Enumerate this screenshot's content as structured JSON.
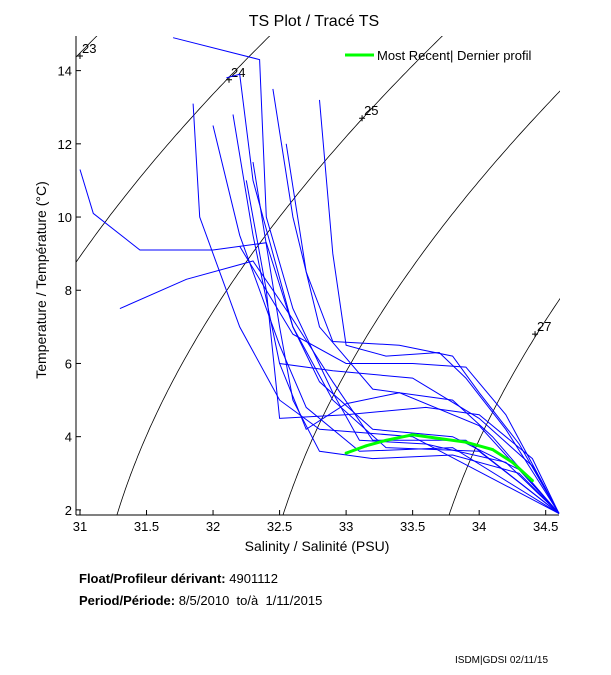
{
  "chart_data": {
    "type": "line",
    "title": "TS Plot / Tracé TS",
    "xlabel": "Salinity / Salinité (PSU)",
    "ylabel": "Temperature / Température (°C)",
    "xlim": [
      30.97,
      34.6
    ],
    "ylim": [
      1.86,
      14.7
    ],
    "xticks": [
      31,
      31.5,
      32,
      32.5,
      33,
      33.5,
      34,
      34.5
    ],
    "xtick_labels": [
      "31",
      "31.5",
      "32",
      "32.5",
      "33",
      "33.5",
      "34",
      "34.5"
    ],
    "yticks": [
      2,
      4,
      6,
      8,
      10,
      12,
      14
    ],
    "ytick_labels": [
      "2",
      "4",
      "6",
      "8",
      "10",
      "12",
      "14"
    ],
    "grid": false,
    "legend": {
      "placement": "top-right",
      "entries": [
        "Most Recent| Dernier profil"
      ]
    },
    "density_contours": {
      "levels": [
        23,
        24,
        25,
        26,
        27
      ],
      "labels": [
        {
          "text": "23",
          "S": 31.0,
          "T": 14.4
        },
        {
          "text": "24",
          "S": 32.12,
          "T": 13.75
        },
        {
          "text": "25",
          "S": 33.12,
          "T": 12.7
        },
        {
          "text": "27",
          "S": 34.42,
          "T": 6.8
        }
      ],
      "color": "#000000"
    },
    "profiles_color": "#0000ff",
    "profiles": [
      [
        [
          31.7,
          14.9
        ],
        [
          32.35,
          14.3
        ],
        [
          32.4,
          10
        ],
        [
          32.6,
          7.5
        ],
        [
          32.9,
          5.2
        ],
        [
          33.1,
          3.9
        ],
        [
          33.6,
          3.8
        ],
        [
          34.2,
          3.3
        ],
        [
          34.6,
          1.9
        ]
      ],
      [
        [
          32.1,
          13.8
        ],
        [
          32.2,
          13.9
        ],
        [
          32.3,
          11
        ],
        [
          32.6,
          7
        ],
        [
          32.8,
          5.5
        ],
        [
          33.2,
          4.2
        ],
        [
          33.8,
          4.0
        ],
        [
          34.3,
          3.1
        ],
        [
          34.6,
          1.9
        ]
      ],
      [
        [
          31.0,
          11.3
        ],
        [
          31.1,
          10.1
        ],
        [
          31.45,
          9.1
        ],
        [
          32.0,
          9.1
        ],
        [
          32.4,
          9.3
        ],
        [
          32.6,
          7
        ],
        [
          32.9,
          5
        ],
        [
          33.3,
          3.7
        ],
        [
          34.0,
          3.6
        ],
        [
          34.6,
          1.9
        ]
      ],
      [
        [
          31.3,
          7.5
        ],
        [
          31.8,
          8.3
        ],
        [
          32.3,
          8.8
        ],
        [
          32.6,
          7.2
        ],
        [
          32.9,
          5.5
        ],
        [
          33.2,
          3.9
        ],
        [
          33.9,
          3.9
        ],
        [
          34.6,
          1.9
        ]
      ],
      [
        [
          31.85,
          13.1
        ],
        [
          31.9,
          10
        ],
        [
          32.2,
          7
        ],
        [
          32.5,
          5
        ],
        [
          32.8,
          4.2
        ],
        [
          33.5,
          4.0
        ],
        [
          34.6,
          1.9
        ]
      ],
      [
        [
          32.0,
          12.5
        ],
        [
          32.2,
          9.5
        ],
        [
          32.5,
          6.5
        ],
        [
          32.7,
          4.8
        ],
        [
          33.1,
          3.6
        ],
        [
          33.8,
          3.7
        ],
        [
          34.6,
          1.9
        ]
      ],
      [
        [
          32.8,
          13.2
        ],
        [
          32.9,
          9
        ],
        [
          33.0,
          6.5
        ],
        [
          33.3,
          6.2
        ],
        [
          33.7,
          6.3
        ],
        [
          33.9,
          5.6
        ],
        [
          34.2,
          4.2
        ],
        [
          34.6,
          1.9
        ]
      ],
      [
        [
          32.55,
          12.0
        ],
        [
          32.7,
          8.5
        ],
        [
          32.9,
          6.6
        ],
        [
          33.4,
          6.5
        ],
        [
          33.8,
          6.2
        ],
        [
          34.0,
          5.2
        ],
        [
          34.3,
          3.8
        ],
        [
          34.6,
          1.9
        ]
      ],
      [
        [
          32.3,
          11.5
        ],
        [
          32.5,
          7
        ],
        [
          32.6,
          5
        ],
        [
          32.8,
          3.6
        ],
        [
          33.2,
          3.4
        ],
        [
          33.8,
          3.5
        ],
        [
          34.3,
          3.0
        ],
        [
          34.6,
          1.9
        ]
      ],
      [
        [
          32.15,
          12.8
        ],
        [
          32.3,
          9.5
        ],
        [
          32.5,
          6
        ],
        [
          32.9,
          5.8
        ],
        [
          33.5,
          5.6
        ],
        [
          34.0,
          4.5
        ],
        [
          34.4,
          3.2
        ],
        [
          34.6,
          1.9
        ]
      ],
      [
        [
          32.45,
          13.5
        ],
        [
          32.6,
          10
        ],
        [
          32.8,
          7
        ],
        [
          33.2,
          5.3
        ],
        [
          33.8,
          5.0
        ],
        [
          34.1,
          4.0
        ],
        [
          34.6,
          1.9
        ]
      ],
      [
        [
          32.25,
          11.0
        ],
        [
          32.4,
          8
        ],
        [
          32.5,
          4.5
        ],
        [
          33.0,
          4.6
        ],
        [
          33.6,
          4.8
        ],
        [
          34.0,
          4.6
        ],
        [
          34.4,
          3.4
        ],
        [
          34.6,
          1.9
        ]
      ],
      [
        [
          32.5,
          6.0
        ],
        [
          32.7,
          4.2
        ],
        [
          33.0,
          4.9
        ],
        [
          33.4,
          5.2
        ],
        [
          34.0,
          4.3
        ],
        [
          34.6,
          1.9
        ]
      ],
      [
        [
          32.2,
          9.2
        ],
        [
          32.6,
          6.8
        ],
        [
          33.0,
          6.0
        ],
        [
          33.5,
          6.0
        ],
        [
          33.9,
          5.9
        ],
        [
          34.2,
          4.6
        ],
        [
          34.6,
          1.9
        ]
      ]
    ],
    "most_recent": {
      "name": "Most Recent| Dernier profil",
      "color": "#00ff00",
      "points": [
        [
          33.0,
          3.55
        ],
        [
          33.15,
          3.75
        ],
        [
          33.3,
          3.9
        ],
        [
          33.5,
          4.05
        ],
        [
          33.7,
          3.95
        ],
        [
          33.9,
          3.85
        ],
        [
          34.1,
          3.65
        ],
        [
          34.25,
          3.3
        ],
        [
          34.4,
          2.8
        ]
      ]
    }
  },
  "info": {
    "float_label": "Float/Profileur dérivant:",
    "float_value": "4901112",
    "period_label": "Period/Période:",
    "period_value": "8/5/2010  to/à  1/11/2015"
  },
  "footer": "ISDM|GDSI 02/11/15"
}
